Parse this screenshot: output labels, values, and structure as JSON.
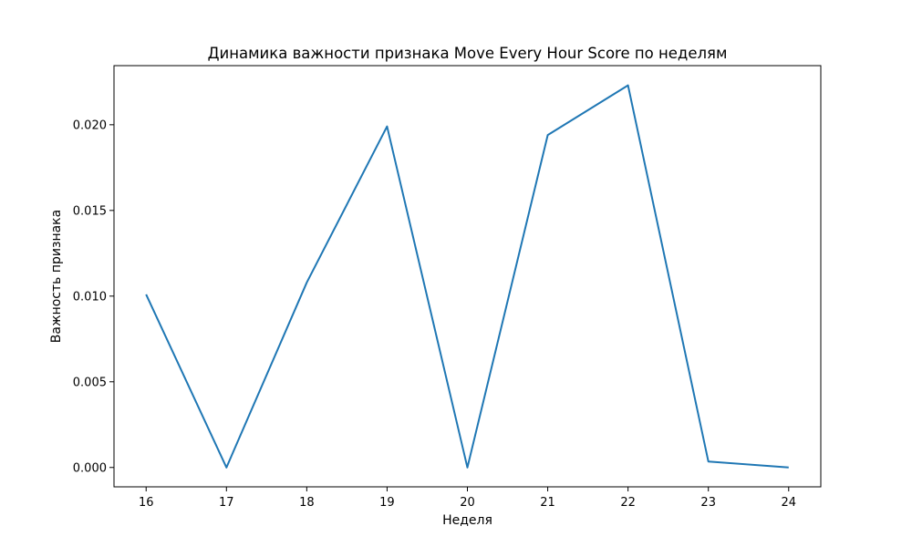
{
  "chart_data": {
    "type": "line",
    "title": "Динамика важности признака Move Every Hour Score по неделям",
    "xlabel": "Неделя",
    "ylabel": "Важность признака",
    "x": [
      16,
      17,
      18,
      19,
      20,
      21,
      22,
      23,
      24
    ],
    "series": [
      {
        "values": [
          0.0101,
          0.0,
          0.0108,
          0.0199,
          0.0,
          0.0194,
          0.0223,
          0.00035,
          0.0
        ],
        "color": "#1f77b4"
      }
    ],
    "xlim": [
      15.6,
      24.4
    ],
    "ylim": [
      -0.00113,
      0.02345
    ],
    "xticks": [
      16,
      17,
      18,
      19,
      20,
      21,
      22,
      23,
      24
    ],
    "yticks": [
      0.0,
      0.005,
      0.01,
      0.015,
      0.02
    ],
    "ytick_labels": [
      "0.000",
      "0.005",
      "0.010",
      "0.015",
      "0.020"
    ],
    "grid": false,
    "legend": false
  }
}
